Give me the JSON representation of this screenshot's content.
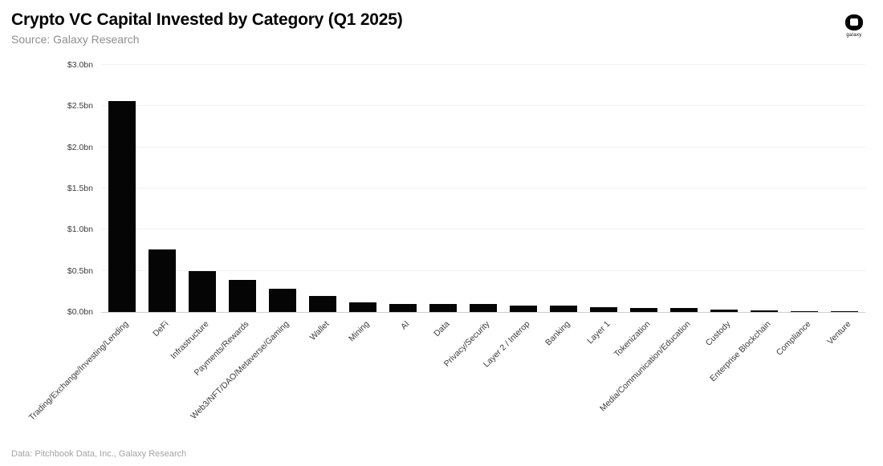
{
  "header": {
    "title": "Crypto VC Capital Invested by Category (Q1 2025)",
    "subtitle": "Source: Galaxy Research"
  },
  "logo": {
    "label": "galaxy"
  },
  "footer": {
    "credit": "Data: Pitchbook Data, Inc., Galaxy Research"
  },
  "colors": {
    "bar": "#050505",
    "gridline": "#f1f1f1",
    "axis_line": "#cfcfcf",
    "tick_text": "#3c3c3c",
    "subtitle_text": "#8f8f8f",
    "footer_text": "#a3a3a3",
    "background": "#ffffff"
  },
  "chart_data": {
    "type": "bar",
    "title": "Crypto VC Capital Invested by Category (Q1 2025)",
    "source": "Galaxy Research",
    "categories": [
      "Trading/Exchange/Investing/Lending",
      "DeFi",
      "Infrastructure",
      "Payments/Rewards",
      "Web3/NFT/DAO/Metaverse/Gaming",
      "Wallet",
      "Mining",
      "AI",
      "Data",
      "Privacy/Security",
      "Layer 2 / Interop",
      "Banking",
      "Layer 1",
      "Tokenization",
      "Media/Communication/Education",
      "Custody",
      "Enterprise Blockchain",
      "Compliance",
      "Venture"
    ],
    "values_bn_usd": [
      2.56,
      0.76,
      0.5,
      0.39,
      0.28,
      0.19,
      0.12,
      0.1,
      0.1,
      0.095,
      0.08,
      0.075,
      0.055,
      0.05,
      0.045,
      0.03,
      0.015,
      0.012,
      0.01
    ],
    "xlabel": "",
    "ylabel": "",
    "ylim": [
      0,
      3.0
    ],
    "yticks": [
      "$0.0bn",
      "$0.5bn",
      "$1.0bn",
      "$1.5bn",
      "$2.0bn",
      "$2.5bn",
      "$3.0bn"
    ],
    "ytick_values": [
      0.0,
      0.5,
      1.0,
      1.5,
      2.0,
      2.5,
      3.0
    ],
    "grid": true,
    "legend": false,
    "bar_color": "#050505"
  }
}
